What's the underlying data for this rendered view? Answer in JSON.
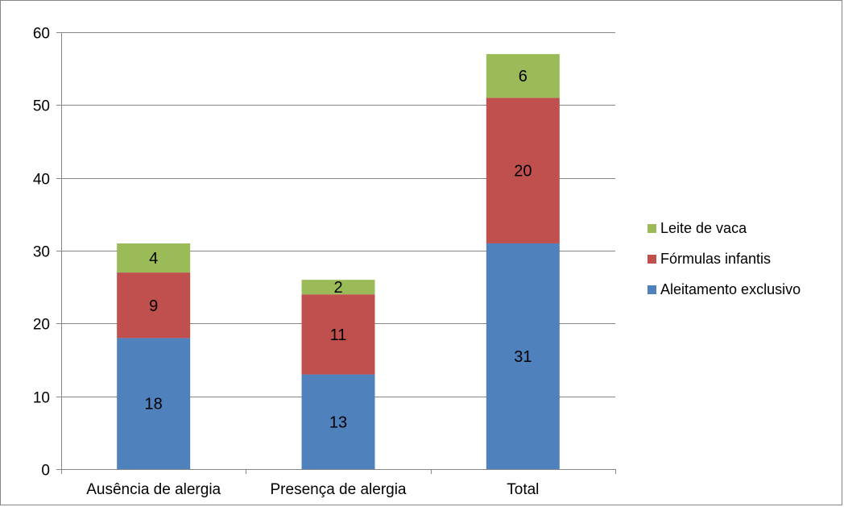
{
  "chart_data": {
    "type": "bar",
    "stacked": true,
    "categories": [
      "Ausência de alergia",
      "Presença de alergia",
      "Total"
    ],
    "series": [
      {
        "name": "Aleitamento exclusivo",
        "values": [
          18,
          13,
          31
        ],
        "color": "#4F81BD"
      },
      {
        "name": "Fórmulas infantis",
        "values": [
          9,
          11,
          20
        ],
        "color": "#C0504D"
      },
      {
        "name": "Leite de vaca",
        "values": [
          4,
          2,
          6
        ],
        "color": "#9BBB59"
      }
    ],
    "ylim": [
      0,
      60
    ],
    "yticks": [
      0,
      10,
      20,
      30,
      40,
      50,
      60
    ],
    "grid": true,
    "legend_position": "right",
    "legend_order": [
      "Leite de vaca",
      "Fórmulas infantis",
      "Aleitamento exclusivo"
    ],
    "show_data_labels": true
  }
}
